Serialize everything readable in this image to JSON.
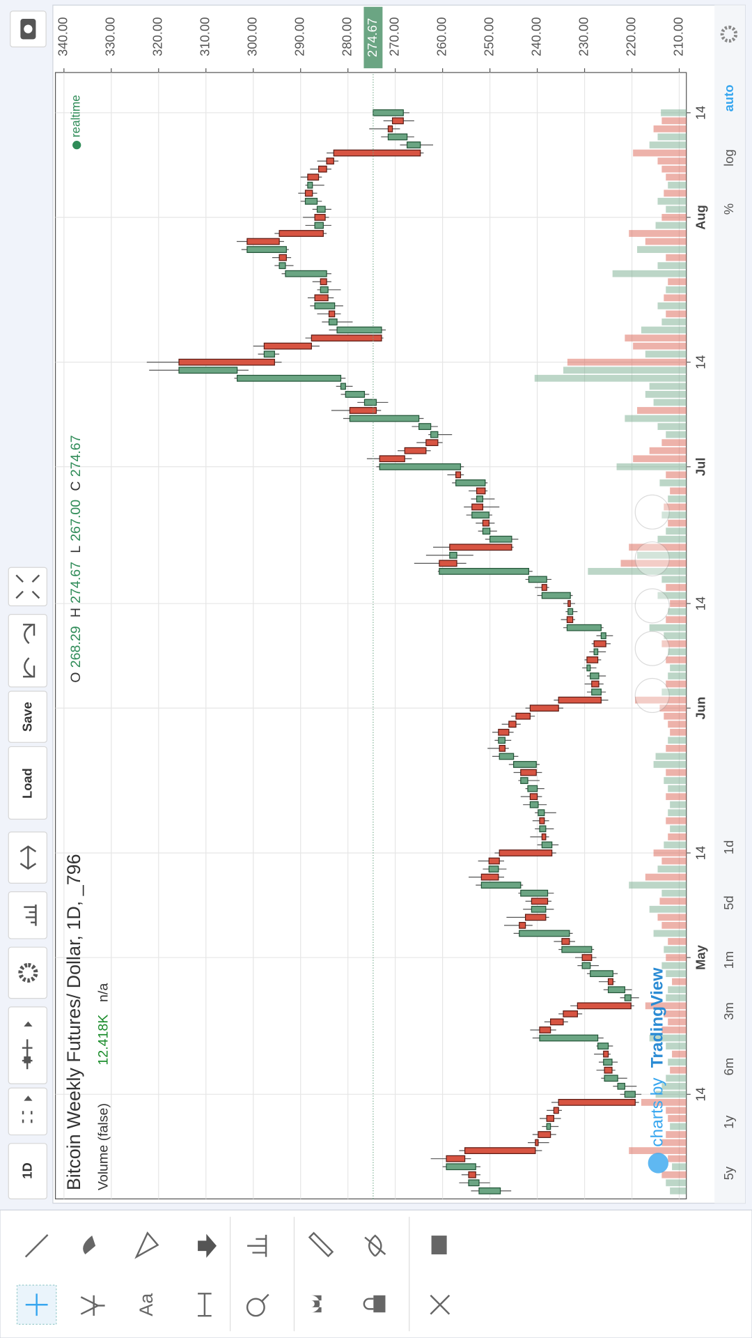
{
  "header": {
    "timeframe": "1D",
    "load": "Load",
    "save": "Save"
  },
  "chart_data": {
    "type": "candlestick",
    "title": "Bitcoin Weekly Futures/ Dollar, 1D, _796",
    "ohlc_legend": [
      {
        "key": "O",
        "label": "268.29"
      },
      {
        "key": "H",
        "label": "274.67"
      },
      {
        "key": "L",
        "label": "267.00"
      },
      {
        "key": "C",
        "label": "274.67"
      }
    ],
    "volume_name": "Volume (false)",
    "volume_last_label": "12.418K",
    "volume_extra": "n/a",
    "realtime": "realtime",
    "last_price": {
      "value": 274.67,
      "label": "274.67"
    },
    "up_color": "#6ba583",
    "down_color": "#d75442",
    "x": [
      "04-02",
      "04-03",
      "04-04",
      "04-05",
      "04-06",
      "04-07",
      "04-08",
      "04-09",
      "04-10",
      "04-11",
      "04-12",
      "04-13",
      "04-14",
      "04-15",
      "04-16",
      "04-17",
      "04-18",
      "04-19",
      "04-20",
      "04-21",
      "04-22",
      "04-23",
      "04-24",
      "04-25",
      "04-26",
      "04-27",
      "04-28",
      "04-29",
      "04-30",
      "05-01",
      "05-02",
      "05-03",
      "05-04",
      "05-05",
      "05-06",
      "05-07",
      "05-08",
      "05-09",
      "05-10",
      "05-11",
      "05-12",
      "05-13",
      "05-14",
      "05-15",
      "05-16",
      "05-17",
      "05-18",
      "05-19",
      "05-20",
      "05-21",
      "05-22",
      "05-23",
      "05-24",
      "05-25",
      "05-26",
      "05-27",
      "05-28",
      "05-29",
      "05-30",
      "05-31",
      "06-01",
      "06-02",
      "06-03",
      "06-04",
      "06-05",
      "06-06",
      "06-07",
      "06-08",
      "06-09",
      "06-10",
      "06-11",
      "06-12",
      "06-13",
      "06-14",
      "06-15",
      "06-16",
      "06-17",
      "06-18",
      "06-19",
      "06-20",
      "06-21",
      "06-22",
      "06-23",
      "06-24",
      "06-25",
      "06-26",
      "06-27",
      "06-28",
      "06-29",
      "06-30",
      "07-01",
      "07-02",
      "07-03",
      "07-04",
      "07-05",
      "07-06",
      "07-07",
      "07-08",
      "07-09",
      "07-10",
      "07-11",
      "07-12",
      "07-13",
      "07-14",
      "07-15",
      "07-16",
      "07-17",
      "07-18",
      "07-19",
      "07-20",
      "07-21",
      "07-22",
      "07-23",
      "07-24",
      "07-25",
      "07-26",
      "07-27",
      "07-28",
      "07-29",
      "07-30",
      "07-31",
      "08-01",
      "08-02",
      "08-03",
      "08-04",
      "08-05",
      "08-06",
      "08-07",
      "08-08",
      "08-09",
      "08-10",
      "08-11",
      "08-12",
      "08-13",
      "08-14"
    ],
    "ohlc": [
      [
        247.8,
        254.0,
        245.5,
        252.3
      ],
      [
        252.3,
        256.5,
        250.0,
        254.5
      ],
      [
        254.5,
        256.0,
        252.0,
        253.0
      ],
      [
        253.0,
        260.0,
        252.0,
        259.2
      ],
      [
        259.2,
        262.5,
        254.0,
        255.3
      ],
      [
        255.3,
        256.5,
        239.0,
        240.4
      ],
      [
        240.4,
        242.0,
        237.5,
        239.8
      ],
      [
        239.8,
        241.0,
        236.0,
        237.2
      ],
      [
        237.2,
        239.0,
        235.5,
        238.0
      ],
      [
        238.0,
        239.5,
        235.0,
        236.5
      ],
      [
        236.5,
        238.0,
        234.8,
        235.5
      ],
      [
        235.5,
        237.0,
        218.5,
        219.3
      ],
      [
        219.3,
        222.5,
        218.0,
        221.5
      ],
      [
        221.5,
        224.0,
        219.0,
        223.0
      ],
      [
        223.0,
        226.5,
        221.0,
        225.8
      ],
      [
        225.8,
        227.5,
        223.5,
        224.2
      ],
      [
        224.2,
        227.0,
        223.0,
        226.0
      ],
      [
        226.0,
        228.0,
        224.5,
        225.0
      ],
      [
        225.0,
        227.5,
        224.0,
        227.2
      ],
      [
        227.2,
        241.0,
        226.0,
        239.5
      ],
      [
        239.5,
        241.5,
        236.0,
        237.2
      ],
      [
        237.2,
        238.5,
        233.5,
        234.5
      ],
      [
        234.5,
        235.5,
        230.5,
        231.5
      ],
      [
        231.5,
        233.0,
        219.5,
        220.2
      ],
      [
        220.2,
        222.5,
        218.5,
        221.5
      ],
      [
        221.5,
        226.0,
        220.0,
        225.0
      ],
      [
        225.0,
        227.0,
        223.5,
        224.0
      ],
      [
        224.0,
        229.5,
        223.0,
        228.8
      ],
      [
        228.8,
        231.5,
        227.0,
        230.5
      ],
      [
        230.5,
        232.0,
        227.5,
        228.5
      ],
      [
        228.5,
        235.5,
        228.0,
        234.8
      ],
      [
        234.8,
        236.5,
        232.0,
        233.2
      ],
      [
        233.2,
        245.0,
        232.5,
        243.8
      ],
      [
        243.8,
        247.0,
        241.0,
        242.5
      ],
      [
        242.5,
        246.5,
        237.5,
        238.2
      ],
      [
        238.2,
        243.0,
        236.5,
        241.2
      ],
      [
        241.2,
        242.5,
        237.0,
        237.8
      ],
      [
        237.8,
        244.0,
        236.5,
        243.5
      ],
      [
        243.5,
        253.0,
        243.0,
        251.8
      ],
      [
        251.8,
        254.5,
        247.0,
        248.2
      ],
      [
        248.2,
        251.5,
        246.5,
        250.2
      ],
      [
        250.2,
        252.5,
        247.0,
        248.0
      ],
      [
        248.0,
        249.0,
        236.0,
        236.9
      ],
      [
        236.9,
        240.0,
        235.5,
        239.0
      ],
      [
        239.0,
        241.5,
        237.5,
        238.2
      ],
      [
        238.2,
        240.5,
        236.5,
        239.5
      ],
      [
        239.5,
        241.0,
        237.5,
        238.5
      ],
      [
        238.5,
        240.5,
        236.0,
        239.8
      ],
      [
        239.8,
        243.0,
        238.0,
        241.5
      ],
      [
        241.5,
        243.5,
        239.0,
        240.0
      ],
      [
        240.0,
        242.5,
        238.5,
        242.0
      ],
      [
        242.0,
        244.0,
        239.5,
        243.5
      ],
      [
        243.5,
        245.0,
        239.0,
        240.2
      ],
      [
        240.2,
        246.0,
        239.5,
        245.0
      ],
      [
        245.0,
        249.5,
        244.0,
        248.0
      ],
      [
        248.0,
        250.5,
        246.0,
        246.8
      ],
      [
        246.8,
        249.0,
        245.5,
        248.2
      ],
      [
        248.2,
        249.5,
        245.0,
        246.0
      ],
      [
        246.0,
        247.5,
        243.5,
        244.5
      ],
      [
        244.5,
        245.5,
        240.5,
        241.5
      ],
      [
        241.5,
        242.5,
        234.5,
        235.5
      ],
      [
        235.5,
        236.5,
        225.0,
        226.5
      ],
      [
        226.5,
        229.5,
        225.5,
        228.5
      ],
      [
        228.5,
        230.0,
        226.0,
        227.0
      ],
      [
        227.0,
        229.5,
        225.5,
        228.8
      ],
      [
        228.8,
        230.5,
        227.5,
        229.5
      ],
      [
        229.5,
        230.0,
        226.5,
        227.2
      ],
      [
        227.2,
        229.0,
        225.5,
        228.0
      ],
      [
        228.0,
        228.5,
        224.5,
        225.5
      ],
      [
        225.5,
        227.5,
        224.0,
        226.5
      ],
      [
        226.5,
        234.5,
        226.0,
        233.7
      ],
      [
        233.7,
        235.0,
        232.0,
        232.5
      ],
      [
        232.5,
        234.0,
        231.5,
        233.5
      ],
      [
        233.5,
        234.5,
        232.0,
        233.0
      ],
      [
        233.0,
        240.0,
        232.5,
        239.0
      ],
      [
        239.0,
        240.5,
        237.5,
        238.0
      ],
      [
        238.0,
        242.5,
        237.0,
        241.8
      ],
      [
        241.8,
        261.0,
        241.0,
        260.7
      ],
      [
        260.7,
        266.0,
        255.0,
        257.0
      ],
      [
        257.0,
        263.5,
        253.5,
        258.5
      ],
      [
        258.5,
        262.0,
        245.0,
        245.4
      ],
      [
        245.4,
        251.0,
        244.0,
        250.0
      ],
      [
        250.0,
        252.5,
        248.5,
        251.5
      ],
      [
        251.5,
        253.0,
        249.0,
        250.2
      ],
      [
        250.2,
        255.0,
        249.5,
        253.8
      ],
      [
        253.8,
        255.5,
        248.0,
        251.5
      ],
      [
        251.5,
        254.0,
        249.0,
        252.8
      ],
      [
        252.8,
        254.5,
        250.5,
        251.0
      ],
      [
        251.0,
        258.0,
        250.5,
        257.2
      ],
      [
        257.2,
        259.0,
        255.5,
        256.2
      ],
      [
        256.2,
        274.0,
        255.5,
        273.3
      ],
      [
        273.3,
        276.0,
        266.5,
        268.0
      ],
      [
        268.0,
        269.5,
        262.5,
        263.5
      ],
      [
        263.5,
        265.5,
        260.0,
        261.0
      ],
      [
        261.0,
        263.0,
        258.0,
        262.5
      ],
      [
        262.5,
        266.5,
        261.0,
        265.0
      ],
      [
        265.0,
        281.0,
        264.0,
        279.6
      ],
      [
        279.6,
        283.5,
        273.0,
        274.0
      ],
      [
        274.0,
        278.0,
        271.5,
        276.5
      ],
      [
        276.5,
        281.5,
        275.5,
        280.5
      ],
      [
        280.5,
        282.5,
        279.0,
        281.5
      ],
      [
        281.5,
        304.0,
        280.5,
        303.4
      ],
      [
        303.4,
        322.0,
        301.0,
        315.7
      ],
      [
        315.7,
        322.5,
        294.0,
        295.5
      ],
      [
        295.5,
        299.0,
        294.5,
        297.7
      ],
      [
        297.7,
        300.0,
        286.0,
        287.7
      ],
      [
        287.7,
        289.0,
        272.5,
        272.9
      ],
      [
        272.9,
        284.0,
        272.0,
        282.3
      ],
      [
        282.3,
        285.5,
        279.0,
        284.0
      ],
      [
        284.0,
        286.5,
        281.5,
        282.8
      ],
      [
        282.8,
        288.0,
        281.0,
        287.0
      ],
      [
        287.0,
        288.5,
        283.0,
        284.2
      ],
      [
        284.2,
        286.5,
        281.5,
        285.8
      ],
      [
        285.8,
        287.5,
        283.5,
        284.5
      ],
      [
        284.5,
        294.0,
        283.5,
        293.2
      ],
      [
        293.2,
        295.5,
        291.5,
        294.5
      ],
      [
        294.5,
        296.0,
        292.0,
        293.0
      ],
      [
        293.0,
        302.5,
        292.5,
        301.3
      ],
      [
        301.3,
        303.5,
        293.5,
        294.5
      ],
      [
        294.5,
        295.5,
        284.5,
        285.2
      ],
      [
        285.2,
        289.0,
        283.5,
        287.0
      ],
      [
        287.0,
        289.5,
        284.0,
        284.8
      ],
      [
        284.8,
        287.5,
        283.5,
        286.5
      ],
      [
        286.5,
        290.0,
        285.5,
        289.0
      ],
      [
        289.0,
        290.5,
        286.5,
        287.5
      ],
      [
        287.5,
        289.0,
        285.0,
        288.5
      ],
      [
        288.5,
        290.0,
        285.5,
        286.2
      ],
      [
        286.2,
        288.0,
        283.5,
        284.5
      ],
      [
        284.5,
        286.5,
        282.0,
        283.0
      ],
      [
        283.0,
        284.5,
        264.0,
        264.7
      ],
      [
        264.7,
        269.0,
        262.0,
        267.5
      ],
      [
        267.5,
        273.0,
        266.0,
        271.5
      ],
      [
        271.5,
        275.5,
        269.0,
        270.6
      ],
      [
        270.6,
        272.5,
        266.0,
        268.29
      ],
      [
        268.29,
        274.67,
        267.0,
        274.67
      ]
    ],
    "volume": [
      8,
      10,
      12,
      7,
      9,
      28,
      12,
      10,
      8,
      9,
      10,
      22,
      15,
      12,
      10,
      8,
      9,
      7,
      10,
      18,
      12,
      9,
      11,
      20,
      10,
      9,
      7,
      10,
      12,
      10,
      11,
      9,
      16,
      12,
      14,
      18,
      13,
      12,
      28,
      20,
      14,
      12,
      16,
      11,
      9,
      8,
      10,
      9,
      8,
      10,
      9,
      11,
      10,
      16,
      15,
      10,
      9,
      8,
      9,
      11,
      13,
      25,
      12,
      10,
      9,
      8,
      10,
      9,
      12,
      11,
      18,
      10,
      9,
      8,
      14,
      10,
      12,
      48,
      32,
      24,
      28,
      14,
      10,
      9,
      12,
      11,
      9,
      8,
      13,
      10,
      34,
      26,
      18,
      12,
      10,
      14,
      30,
      24,
      16,
      20,
      18,
      74,
      60,
      58,
      20,
      26,
      30,
      22,
      12,
      10,
      14,
      11,
      10,
      9,
      36,
      14,
      10,
      24,
      20,
      28,
      15,
      12,
      10,
      14,
      11,
      9,
      10,
      12,
      14,
      26,
      18,
      14,
      16,
      12,
      12.418
    ],
    "xlim": [
      "04-01",
      "08-19"
    ],
    "xticks": [
      {
        "value": "04-14",
        "label": "14"
      },
      {
        "value": "05-01",
        "label": "May"
      },
      {
        "value": "05-14",
        "label": "14"
      },
      {
        "value": "06-01",
        "label": "Jun"
      },
      {
        "value": "06-14",
        "label": "14"
      },
      {
        "value": "07-01",
        "label": "Jul"
      },
      {
        "value": "07-14",
        "label": "14"
      },
      {
        "value": "08-01",
        "label": "Aug"
      },
      {
        "value": "08-14",
        "label": "14"
      }
    ],
    "ylim": [
      208.5,
      341.8
    ],
    "yticks": [
      {
        "value": 210,
        "label": "210.00"
      },
      {
        "value": 220,
        "label": "220.00"
      },
      {
        "value": 230,
        "label": "230.00"
      },
      {
        "value": 240,
        "label": "240.00"
      },
      {
        "value": 250,
        "label": "250.00"
      },
      {
        "value": 260,
        "label": "260.00"
      },
      {
        "value": 270,
        "label": "270.00"
      },
      {
        "value": 280,
        "label": "280.00"
      },
      {
        "value": 290,
        "label": "290.00"
      },
      {
        "value": 300,
        "label": "300.00"
      },
      {
        "value": 310,
        "label": "310.00"
      },
      {
        "value": 320,
        "label": "320.00"
      },
      {
        "value": 330,
        "label": "330.00"
      },
      {
        "value": 340,
        "label": "340.00"
      }
    ],
    "grid": true
  },
  "footer": {
    "ranges": [
      "5y",
      "1y",
      "6m",
      "3m",
      "1m",
      "5d",
      "1d"
    ],
    "scale_modes": [
      "%",
      "log",
      "auto"
    ],
    "watermark": [
      "charts by",
      "TradingView"
    ]
  }
}
